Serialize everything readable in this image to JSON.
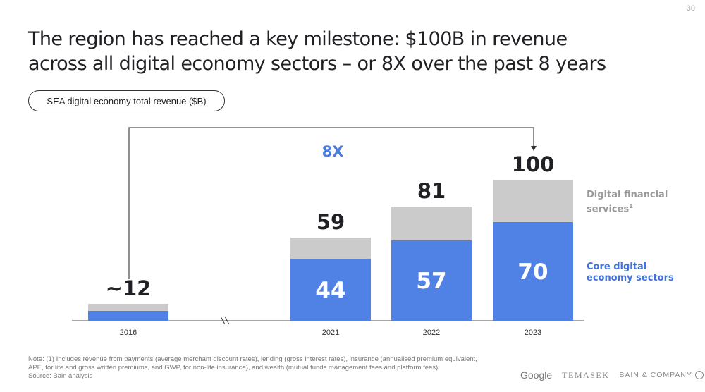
{
  "page_number": "30",
  "title": {
    "line1": "The region has reached a key milestone: $100B in revenue",
    "line2": "across all digital economy sectors – or 8X over the past 8 years"
  },
  "metric_pill": "SEA digital economy total revenue ($B)",
  "colors": {
    "core": "#5082e6",
    "dfs": "#cbcbcb",
    "growth_label": "#4a7de0",
    "axis": "#888888"
  },
  "chart_data": {
    "type": "bar",
    "stacked": true,
    "title": "SEA digital economy total revenue ($B)",
    "xlabel": "",
    "ylabel": "",
    "categories": [
      "2016",
      "2021",
      "2022",
      "2023"
    ],
    "series": [
      {
        "name": "Core digital economy sectors",
        "values": [
          7,
          44,
          57,
          70
        ],
        "value_labels": [
          "",
          "44",
          "57",
          "70"
        ]
      },
      {
        "name": "Digital financial services¹",
        "values": [
          5,
          15,
          24,
          30
        ]
      }
    ],
    "totals": [
      12,
      59,
      81,
      100
    ],
    "total_labels": [
      "~12",
      "59",
      "81",
      "100"
    ],
    "ylim": [
      0,
      100
    ],
    "axis_break_between": [
      "2016",
      "2021"
    ],
    "annotation": {
      "text": "8X",
      "from": "2016",
      "to": "2023"
    },
    "legend_position": "right",
    "grid": false
  },
  "legend": {
    "dfs_label": "Digital financial services",
    "dfs_sup": "1",
    "core_label_line1": "Core digital",
    "core_label_line2": "economy sectors"
  },
  "note": {
    "line1": "Note: (1) Includes revenue from payments (average merchant discount rates), lending (gross interest rates), insurance (annualised premium equivalent,",
    "line2": "APE, for life and gross written premiums, and GWP, for non-life insurance), and wealth (mutual funds management fees and platform fees).",
    "line3": "Source: Bain analysis"
  },
  "logos": {
    "google": "Google",
    "temasek": "TEMASEK",
    "bain": "BAIN & COMPANY"
  }
}
